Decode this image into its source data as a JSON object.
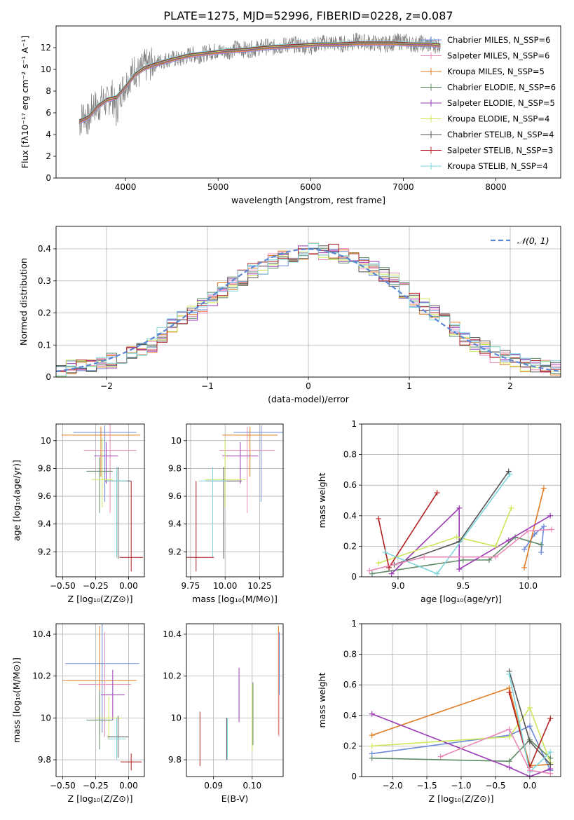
{
  "figure_title": "PLATE=1275, MJD=52996, FIBERID=0228, z=0.087",
  "colors": [
    "#6a89d8",
    "#e07b22",
    "#e07b22",
    "#5e8a66",
    "#9b3bb5",
    "#cde75a",
    "#555555",
    "#b22222",
    "#7fd6dc",
    "#e889b8"
  ],
  "chart_data": [
    {
      "id": "spectrum",
      "type": "line",
      "xlabel": "wavelength [Angstrom, rest frame]",
      "ylabel": "Flux [fλ10⁻¹⁷ erg cm⁻² s⁻¹ A⁻¹]",
      "xlim": [
        3250,
        8700
      ],
      "ylim": [
        0,
        14
      ],
      "xticks": [
        4000,
        5000,
        6000,
        7000,
        8000
      ],
      "yticks": [
        0,
        2,
        4,
        6,
        8,
        10,
        12
      ],
      "grid": false,
      "legend_position": "top-right",
      "data_series": {
        "name": "",
        "x": [
          3500,
          3550,
          3600,
          3650,
          3700,
          3750,
          3800,
          3850,
          3900,
          3950,
          4000,
          4050,
          4100,
          4150,
          4200,
          4300,
          4400,
          4500,
          4600,
          4700,
          4800,
          4900,
          5000,
          5100,
          5200,
          5300,
          5400,
          5500,
          5600,
          5700,
          5800,
          5900,
          6000,
          6100,
          6200,
          6300,
          6400,
          6500,
          6600,
          6700,
          6800,
          6900,
          7000,
          7100,
          7200,
          7300,
          7400
        ],
        "y": [
          5.0,
          6.0,
          5.2,
          6.8,
          6.4,
          7.2,
          6.9,
          7.8,
          6.0,
          8.0,
          8.6,
          9.4,
          10.0,
          9.6,
          10.3,
          10.5,
          10.8,
          11.0,
          10.9,
          11.4,
          11.3,
          11.6,
          11.7,
          11.6,
          12.0,
          11.8,
          11.9,
          12.1,
          12.0,
          12.2,
          12.3,
          12.2,
          12.1,
          12.4,
          12.5,
          12.3,
          12.4,
          12.6,
          12.5,
          12.4,
          12.3,
          12.5,
          12.6,
          12.3,
          12.4,
          12.2,
          12.3
        ]
      },
      "model_series": {
        "x": [
          3500,
          3600,
          3700,
          3800,
          3900,
          4000,
          4100,
          4200,
          4300,
          4500,
          4700,
          4900,
          5100,
          5300,
          5500,
          5700,
          5900,
          6100,
          6300,
          6500,
          6700,
          6900,
          7100,
          7300,
          7400
        ],
        "y": [
          5.2,
          5.6,
          6.6,
          7.2,
          7.4,
          8.4,
          9.5,
          10.1,
          10.4,
          10.9,
          11.3,
          11.5,
          11.7,
          11.8,
          12.0,
          12.1,
          12.2,
          12.3,
          12.3,
          12.4,
          12.4,
          12.4,
          12.3,
          12.3,
          12.2
        ]
      },
      "legend": [
        "Chabrier MILES, N_SSP=6",
        "Salpeter MILES, N_SSP=6",
        "Kroupa MILES, N_SSP=5",
        "Chabrier ELODIE, N_SSP=6",
        "Salpeter ELODIE, N_SSP=5",
        "Kroupa ELODIE, N_SSP=4",
        "Chabrier STELIB, N_SSP=4",
        "Salpeter STELIB, N_SSP=3",
        "Kroupa STELIB, N_SSP=4"
      ]
    },
    {
      "id": "residuals",
      "type": "line",
      "xlabel": "(data-model)/error",
      "ylabel": "Normed distribution",
      "xlim": [
        -2.5,
        2.5
      ],
      "ylim": [
        0,
        0.47
      ],
      "xticks": [
        -2,
        -1,
        0,
        1,
        2
      ],
      "yticks": [
        0.0,
        0.1,
        0.2,
        0.3,
        0.4
      ],
      "grid": true,
      "legend": [
        "𝒩(0, 1)"
      ],
      "legend_position": "top-right",
      "histogram_bin_edges": [
        -2.5,
        -2.4,
        -2.3,
        -2.2,
        -2.1,
        -2.0,
        -1.9,
        -1.8,
        -1.7,
        -1.6,
        -1.5,
        -1.4,
        -1.3,
        -1.2,
        -1.1,
        -1.0,
        -0.9,
        -0.8,
        -0.7,
        -0.6,
        -0.5,
        -0.4,
        -0.3,
        -0.2,
        -0.1,
        0.0,
        0.1,
        0.2,
        0.3,
        0.4,
        0.5,
        0.6,
        0.7,
        0.8,
        0.9,
        1.0,
        1.1,
        1.2,
        1.3,
        1.4,
        1.5,
        1.6,
        1.7,
        1.8,
        1.9,
        2.0,
        2.1,
        2.2,
        2.3,
        2.4,
        2.5
      ],
      "histogram_heights": [
        0.025,
        0.03,
        0.03,
        0.04,
        0.04,
        0.05,
        0.06,
        0.07,
        0.09,
        0.1,
        0.13,
        0.16,
        0.18,
        0.2,
        0.22,
        0.24,
        0.27,
        0.29,
        0.31,
        0.33,
        0.34,
        0.36,
        0.37,
        0.38,
        0.39,
        0.4,
        0.39,
        0.39,
        0.38,
        0.37,
        0.35,
        0.34,
        0.32,
        0.3,
        0.27,
        0.24,
        0.22,
        0.2,
        0.18,
        0.15,
        0.12,
        0.1,
        0.09,
        0.07,
        0.06,
        0.05,
        0.04,
        0.035,
        0.03,
        0.03
      ]
    },
    {
      "id": "age-vs-Z",
      "type": "scatter",
      "xlabel": "Z [log₁₀(Z/Z⊙)]",
      "ylabel": "age  [log₁₀(age/yr)]",
      "xlim": [
        -0.55,
        0.12
      ],
      "ylim": [
        9.02,
        10.12
      ],
      "xticks": [
        -0.5,
        -0.25,
        0.0
      ],
      "xtick_labels": [
        "−0.50",
        "−0.25",
        "0.00"
      ],
      "yticks": [
        9.2,
        9.4,
        9.6,
        9.8,
        10.0
      ],
      "grid": true,
      "points": [
        {
          "x": -0.18,
          "y": 10.06,
          "xerr": 0.24,
          "yerr_lo": 0.5,
          "yerr_hi": 0.05,
          "series": 0
        },
        {
          "x": -0.21,
          "y": 10.04,
          "xerr": 0.3,
          "yerr_lo": 0.3,
          "yerr_hi": 0.06,
          "series": 1
        },
        {
          "x": -0.14,
          "y": 9.93,
          "xerr": 0.2,
          "yerr_lo": 0.45,
          "yerr_hi": 0.2,
          "series": 9
        },
        {
          "x": -0.17,
          "y": 9.89,
          "xerr": 0.09,
          "yerr_lo": 0.2,
          "yerr_hi": 0.1,
          "series": 4
        },
        {
          "x": -0.22,
          "y": 9.78,
          "xerr": 0.1,
          "yerr_lo": 0.3,
          "yerr_hi": 0.1,
          "series": 3
        },
        {
          "x": -0.2,
          "y": 9.72,
          "xerr": 0.08,
          "yerr_lo": 0.2,
          "yerr_hi": 0.3,
          "series": 5
        },
        {
          "x": -0.08,
          "y": 9.71,
          "xerr": 0.1,
          "yerr_lo": 0.56,
          "yerr_hi": 0.1,
          "series": 6
        },
        {
          "x": -0.09,
          "y": 9.71,
          "xerr": 0.08,
          "yerr_lo": 0.55,
          "yerr_hi": 0.1,
          "series": 8
        },
        {
          "x": 0.02,
          "y": 9.16,
          "xerr": 0.09,
          "yerr_lo": 0.1,
          "yerr_hi": 0.55,
          "series": 7
        }
      ]
    },
    {
      "id": "age-vs-mass",
      "type": "scatter",
      "xlabel": "mass [log₁₀(M/M⊙)]",
      "ylabel": "",
      "xlim": [
        9.72,
        10.42
      ],
      "ylim": [
        9.02,
        10.12
      ],
      "xticks": [
        9.75,
        10.0,
        10.25
      ],
      "xtick_labels": [
        "9.75",
        "10.00",
        "10.25"
      ],
      "yticks": [
        9.2,
        9.4,
        9.6,
        9.8,
        10.0
      ],
      "grid": true,
      "points": [
        {
          "x": 10.26,
          "y": 10.06,
          "xerr": 0.2,
          "yerr_lo": 0.5,
          "yerr_hi": 0.05,
          "series": 0
        },
        {
          "x": 10.18,
          "y": 10.04,
          "xerr": 0.2,
          "yerr_lo": 0.3,
          "yerr_hi": 0.06,
          "series": 1
        },
        {
          "x": 10.16,
          "y": 9.93,
          "xerr": 0.2,
          "yerr_lo": 0.45,
          "yerr_hi": 0.17,
          "series": 9
        },
        {
          "x": 10.11,
          "y": 9.89,
          "xerr": 0.13,
          "yerr_lo": 0.2,
          "yerr_hi": 0.1,
          "series": 4
        },
        {
          "x": 10.0,
          "y": 9.72,
          "xerr": 0.15,
          "yerr_lo": 0.2,
          "yerr_hi": 0.3,
          "series": 5
        },
        {
          "x": 9.99,
          "y": 9.71,
          "xerr": 0.13,
          "yerr_lo": 0.56,
          "yerr_hi": 0.1,
          "series": 6
        },
        {
          "x": 9.91,
          "y": 9.71,
          "xerr": 0.1,
          "yerr_lo": 0.55,
          "yerr_hi": 0.1,
          "series": 8
        },
        {
          "x": 9.79,
          "y": 9.16,
          "xerr": 0.13,
          "yerr_lo": 0.1,
          "yerr_hi": 0.55,
          "series": 7
        }
      ]
    },
    {
      "id": "weight-vs-age",
      "type": "line",
      "xlabel": "age  [log₁₀(age/yr)]",
      "ylabel": "mass weight",
      "xlim": [
        8.72,
        10.25
      ],
      "ylim": [
        0,
        1.0
      ],
      "xticks": [
        9.0,
        9.5,
        10.0
      ],
      "xtick_labels": [
        "9.0",
        "9.5",
        "10.0"
      ],
      "yticks": [
        0.0,
        0.2,
        0.4,
        0.6,
        0.8,
        1.0
      ],
      "grid": true,
      "series": [
        {
          "color": 0,
          "x": [
            9.97,
            10.05,
            10.12,
            10.1
          ],
          "y": [
            0.18,
            0.28,
            0.33,
            0.16
          ]
        },
        {
          "color": 1,
          "x": [
            9.97,
            10.12
          ],
          "y": [
            0.06,
            0.58
          ]
        },
        {
          "color": 3,
          "x": [
            8.8,
            9.5,
            9.7,
            9.9,
            10.1
          ],
          "y": [
            0.02,
            0.11,
            0.11,
            0.26,
            0.21
          ]
        },
        {
          "color": 4,
          "x": [
            8.95,
            9.47,
            9.47,
            9.85,
            10.17
          ],
          "y": [
            0.02,
            0.45,
            0.05,
            0.24,
            0.4
          ]
        },
        {
          "color": 5,
          "x": [
            8.85,
            9.45,
            9.75,
            9.87
          ],
          "y": [
            0.09,
            0.26,
            0.2,
            0.45
          ]
        },
        {
          "color": 6,
          "x": [
            8.97,
            9.47,
            9.85
          ],
          "y": [
            0.08,
            0.23,
            0.69
          ]
        },
        {
          "color": 7,
          "x": [
            8.85,
            8.93,
            9.3
          ],
          "y": [
            0.38,
            0.06,
            0.55
          ]
        },
        {
          "color": 8,
          "x": [
            8.9,
            9.3,
            9.86
          ],
          "y": [
            0.16,
            0.02,
            0.67
          ]
        },
        {
          "color": 9,
          "x": [
            8.78,
            9.2,
            9.75,
            10.0,
            10.18
          ],
          "y": [
            0.04,
            0.13,
            0.13,
            0.3,
            0.31
          ]
        }
      ]
    },
    {
      "id": "mass-vs-Z",
      "type": "scatter",
      "xlabel": "Z [log₁₀(Z/Z⊙)]",
      "ylabel": "mass [log₁₀(M/M⊙)]",
      "xlim": [
        -0.55,
        0.12
      ],
      "ylim": [
        9.72,
        10.45
      ],
      "xticks": [
        -0.5,
        -0.25,
        0.0
      ],
      "xtick_labels": [
        "−0.50",
        "−0.25",
        "0.00"
      ],
      "yticks": [
        9.8,
        10.0,
        10.2,
        10.4
      ],
      "grid": true,
      "points": [
        {
          "x": -0.2,
          "y": 10.26,
          "xerr": 0.28,
          "yerr": 0.33,
          "series": 0
        },
        {
          "x": -0.22,
          "y": 10.18,
          "xerr": 0.28,
          "yerr": 0.26,
          "series": 1
        },
        {
          "x": -0.18,
          "y": 10.16,
          "xerr": 0.2,
          "yerr": 0.25,
          "series": 9
        },
        {
          "x": -0.12,
          "y": 10.11,
          "xerr": 0.09,
          "yerr": 0.12,
          "series": 4
        },
        {
          "x": -0.15,
          "y": 10.0,
          "xerr": 0.1,
          "yerr": 0.1,
          "series": 5
        },
        {
          "x": -0.22,
          "y": 9.99,
          "xerr": 0.1,
          "yerr": 0.14,
          "series": 3
        },
        {
          "x": -0.08,
          "y": 9.91,
          "xerr": 0.08,
          "yerr": 0.1,
          "series": 6
        },
        {
          "x": -0.09,
          "y": 9.9,
          "xerr": 0.07,
          "yerr": 0.1,
          "series": 8
        },
        {
          "x": 0.02,
          "y": 9.79,
          "xerr": 0.08,
          "yerr": 0.04,
          "series": 7
        }
      ]
    },
    {
      "id": "mass-vs-EBV",
      "type": "scatter",
      "xlabel": "E(B-V)",
      "ylabel": "",
      "xlim": [
        0.083,
        0.108
      ],
      "ylim": [
        9.72,
        10.45
      ],
      "xticks": [
        0.09,
        0.1
      ],
      "xtick_labels": [
        "0.09",
        "0.10"
      ],
      "yticks": [
        9.8,
        10.0,
        10.2,
        10.4
      ],
      "grid": true,
      "points": [
        {
          "x": 0.0865,
          "y": 9.9,
          "yerr": 0.13,
          "series": 7
        },
        {
          "x": 0.0934,
          "y": 9.9,
          "yerr": 0.1,
          "series": 6
        },
        {
          "x": 0.0936,
          "y": 9.9,
          "yerr": 0.1,
          "series": 8
        },
        {
          "x": 0.0966,
          "y": 10.11,
          "yerr": 0.13,
          "series": 4
        },
        {
          "x": 0.1,
          "y": 10.0,
          "yerr": 0.16,
          "series": 5
        },
        {
          "x": 0.1002,
          "y": 10.02,
          "yerr": 0.15,
          "series": 3
        },
        {
          "x": 0.1068,
          "y": 10.18,
          "yerr": 0.26,
          "series": 1
        },
        {
          "x": 0.1069,
          "y": 10.16,
          "yerr": 0.25,
          "series": 9
        },
        {
          "x": 0.107,
          "y": 10.26,
          "yerr": 0.15,
          "series": 0
        }
      ]
    },
    {
      "id": "weight-vs-Z",
      "type": "line",
      "xlabel": "Z [log₁₀(Z/Z⊙)]",
      "ylabel": "mass weight",
      "xlim": [
        -2.45,
        0.45
      ],
      "ylim": [
        0,
        1.0
      ],
      "xticks": [
        -2.0,
        -1.5,
        -1.0,
        -0.5,
        0.0
      ],
      "xtick_labels": [
        "−2.0",
        "−1.5",
        "−1.0",
        "−0.5",
        "0.0"
      ],
      "yticks": [
        0.0,
        0.2,
        0.4,
        0.6,
        0.8,
        1.0
      ],
      "grid": true,
      "series": [
        {
          "color": 0,
          "x": [
            -2.3,
            -0.3,
            0.0,
            0.3
          ],
          "y": [
            0.15,
            0.27,
            0.33,
            0.04
          ]
        },
        {
          "color": 1,
          "x": [
            -2.3,
            -0.3,
            0.0,
            0.3
          ],
          "y": [
            0.27,
            0.58,
            0.07,
            0.08
          ]
        },
        {
          "color": 3,
          "x": [
            -2.3,
            -0.3,
            0.0,
            0.3
          ],
          "y": [
            0.12,
            0.1,
            0.24,
            0.12
          ]
        },
        {
          "color": 4,
          "x": [
            -2.3,
            -0.3,
            0.0,
            0.3
          ],
          "y": [
            0.41,
            0.06,
            0.0,
            0.05
          ]
        },
        {
          "color": 5,
          "x": [
            -2.3,
            -0.3,
            0.0,
            0.3
          ],
          "y": [
            0.2,
            0.26,
            0.45,
            0.09
          ]
        },
        {
          "color": 6,
          "x": [
            -0.3,
            0.0,
            0.3
          ],
          "y": [
            0.69,
            0.23,
            0.08
          ]
        },
        {
          "color": 7,
          "x": [
            -0.3,
            0.0,
            0.3
          ],
          "y": [
            0.55,
            0.06,
            0.38
          ]
        },
        {
          "color": 8,
          "x": [
            -0.3,
            0.0,
            0.3
          ],
          "y": [
            0.67,
            0.03,
            0.16
          ]
        },
        {
          "color": 9,
          "x": [
            -1.3,
            -0.3,
            0.0,
            0.3
          ],
          "y": [
            0.13,
            0.31,
            0.04,
            0.02
          ]
        }
      ]
    }
  ]
}
